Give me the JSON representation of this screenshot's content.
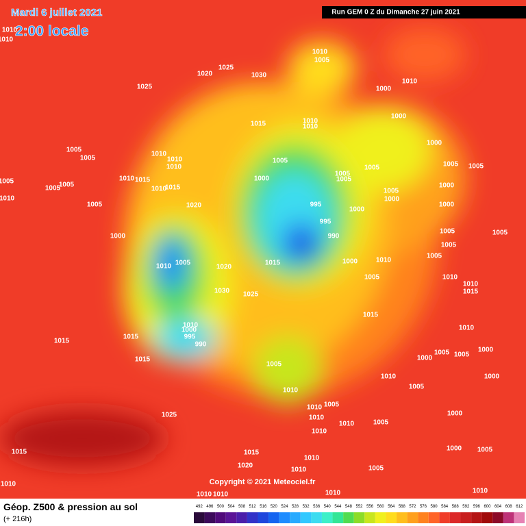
{
  "header": {
    "date": "Mardi 6 juillet 2021",
    "time": "2:00 locale",
    "run": "Run GEM 0 Z du Dimanche 27 juin 2021"
  },
  "copyright": "Copyright © 2021 Meteociel.fr",
  "footer": {
    "title": "Géop. Z500 & pression au sol",
    "subtitle": "(+ 216h)"
  },
  "scale": {
    "labels": [
      492,
      496,
      500,
      504,
      508,
      512,
      516,
      520,
      524,
      528,
      532,
      536,
      540,
      544,
      548,
      552,
      556,
      560,
      564,
      568,
      572,
      576,
      580,
      584,
      588,
      592,
      596,
      600,
      604,
      608,
      612
    ],
    "colors": [
      "#2a0a3a",
      "#3c0a5a",
      "#500a7a",
      "#5a1496",
      "#4b1eaa",
      "#3232c8",
      "#1e46dc",
      "#1464f0",
      "#1e8cff",
      "#28aaff",
      "#32c8ff",
      "#3cdcf0",
      "#3cf0c8",
      "#32e696",
      "#50dc50",
      "#8cdc28",
      "#c8e61e",
      "#f0f01e",
      "#ffdc1e",
      "#ffbe1e",
      "#ffa01e",
      "#ff821e",
      "#ff6428",
      "#f03c28",
      "#dc2828",
      "#c81e1e",
      "#b41414",
      "#a00a0a",
      "#8c0a28",
      "#be3278",
      "#e682b4"
    ]
  },
  "isobar_labels": [
    "1010",
    "1010",
    "1025",
    "1020",
    "1025",
    "1030",
    "1010",
    "1005",
    "1010",
    "1000",
    "1015",
    "1010",
    "1010",
    "1000",
    "1000",
    "1005",
    "1005",
    "1005",
    "1005",
    "1010",
    "1010",
    "1010",
    "1005",
    "1005",
    "1005",
    "1005",
    "1000",
    "1000",
    "1005",
    "1005",
    "1005",
    "1010",
    "1015",
    "1010",
    "1015",
    "1005",
    "1000",
    "1000",
    "1010",
    "1005",
    "1020",
    "995",
    "1000",
    "995",
    "990",
    "1000",
    "1005",
    "1005",
    "1005",
    "1010",
    "1005",
    "1020",
    "1015",
    "1000",
    "1010",
    "1005",
    "1005",
    "1010",
    "1010",
    "1015",
    "1030",
    "1025",
    "1015",
    "1010",
    "1010",
    "1000",
    "995",
    "990",
    "1015",
    "1015",
    "1015",
    "1005",
    "1005",
    "1000",
    "1000",
    "1005",
    "1010",
    "1005",
    "1000",
    "1010",
    "1010",
    "1005",
    "1010",
    "1025",
    "1010",
    "1005",
    "1000",
    "1010",
    "1015",
    "1015",
    "1010",
    "1000",
    "1005",
    "1020",
    "1010",
    "1005",
    "1010",
    "1010",
    "1010",
    "1010",
    "1010"
  ]
}
